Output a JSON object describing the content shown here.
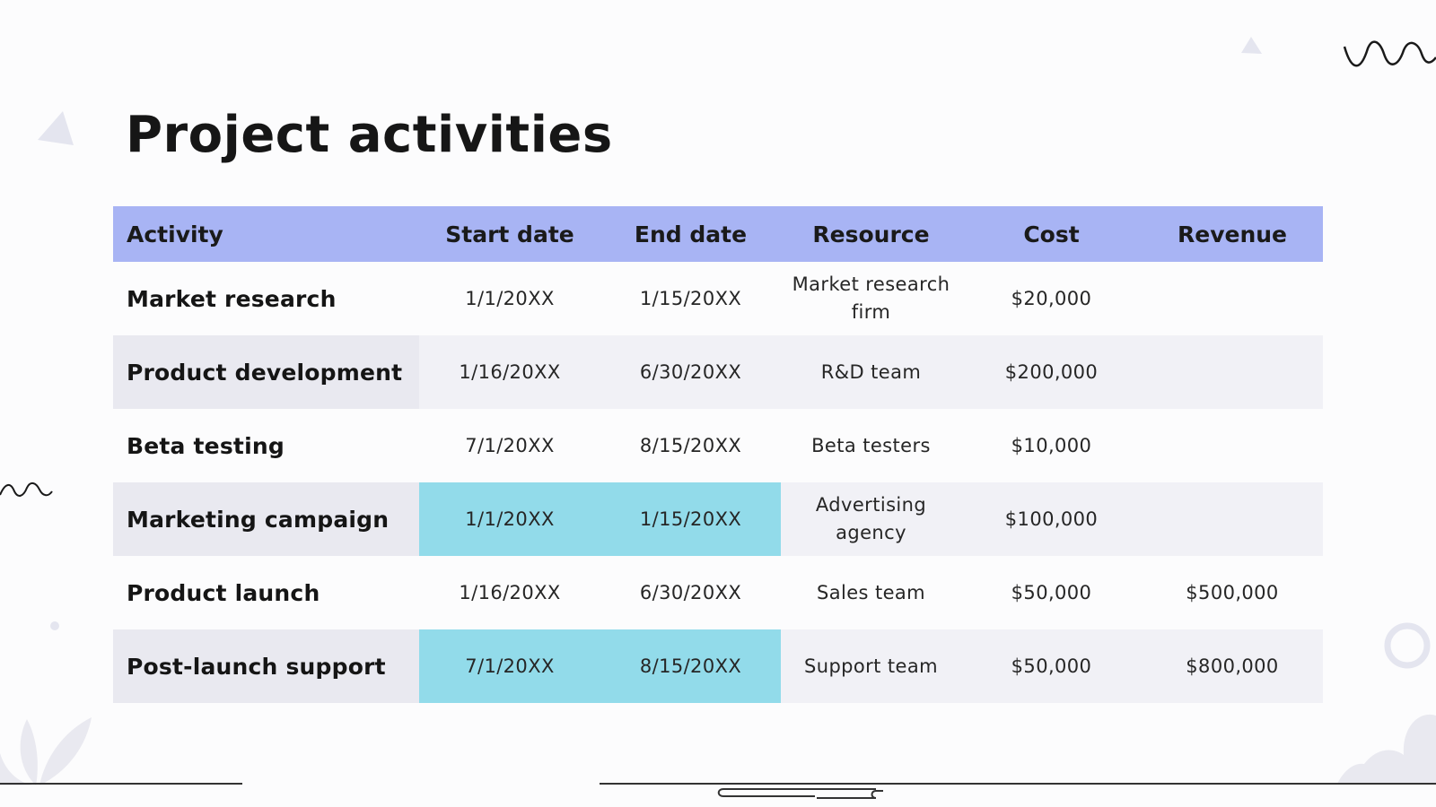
{
  "slide": {
    "title": "Project activities"
  },
  "table": {
    "headers": [
      "Activity",
      "Start date",
      "End date",
      "Resource",
      "Cost",
      "Revenue"
    ],
    "rows": [
      {
        "activity": "Market research",
        "start": "1/1/20XX",
        "end": "1/15/20XX",
        "resource": "Market research firm",
        "cost": "$20,000",
        "revenue": ""
      },
      {
        "activity": "Product development",
        "start": "1/16/20XX",
        "end": "6/30/20XX",
        "resource": "R&D team",
        "cost": "$200,000",
        "revenue": ""
      },
      {
        "activity": "Beta testing",
        "start": "7/1/20XX",
        "end": "8/15/20XX",
        "resource": "Beta testers",
        "cost": "$10,000",
        "revenue": ""
      },
      {
        "activity": "Marketing campaign",
        "start": "1/1/20XX",
        "end": "1/15/20XX",
        "resource": "Advertising agency",
        "cost": "$100,000",
        "revenue": ""
      },
      {
        "activity": "Product launch",
        "start": "1/16/20XX",
        "end": "6/30/20XX",
        "resource": "Sales team",
        "cost": "$50,000",
        "revenue": "$500,000"
      },
      {
        "activity": "Post-launch support",
        "start": "7/1/20XX",
        "end": "8/15/20XX",
        "resource": "Support team",
        "cost": "$50,000",
        "revenue": "$800,000"
      }
    ]
  },
  "colors": {
    "header_bg": "#a8b4f4",
    "row_shade": "#f1f1f6",
    "highlight": "#92dbea"
  }
}
